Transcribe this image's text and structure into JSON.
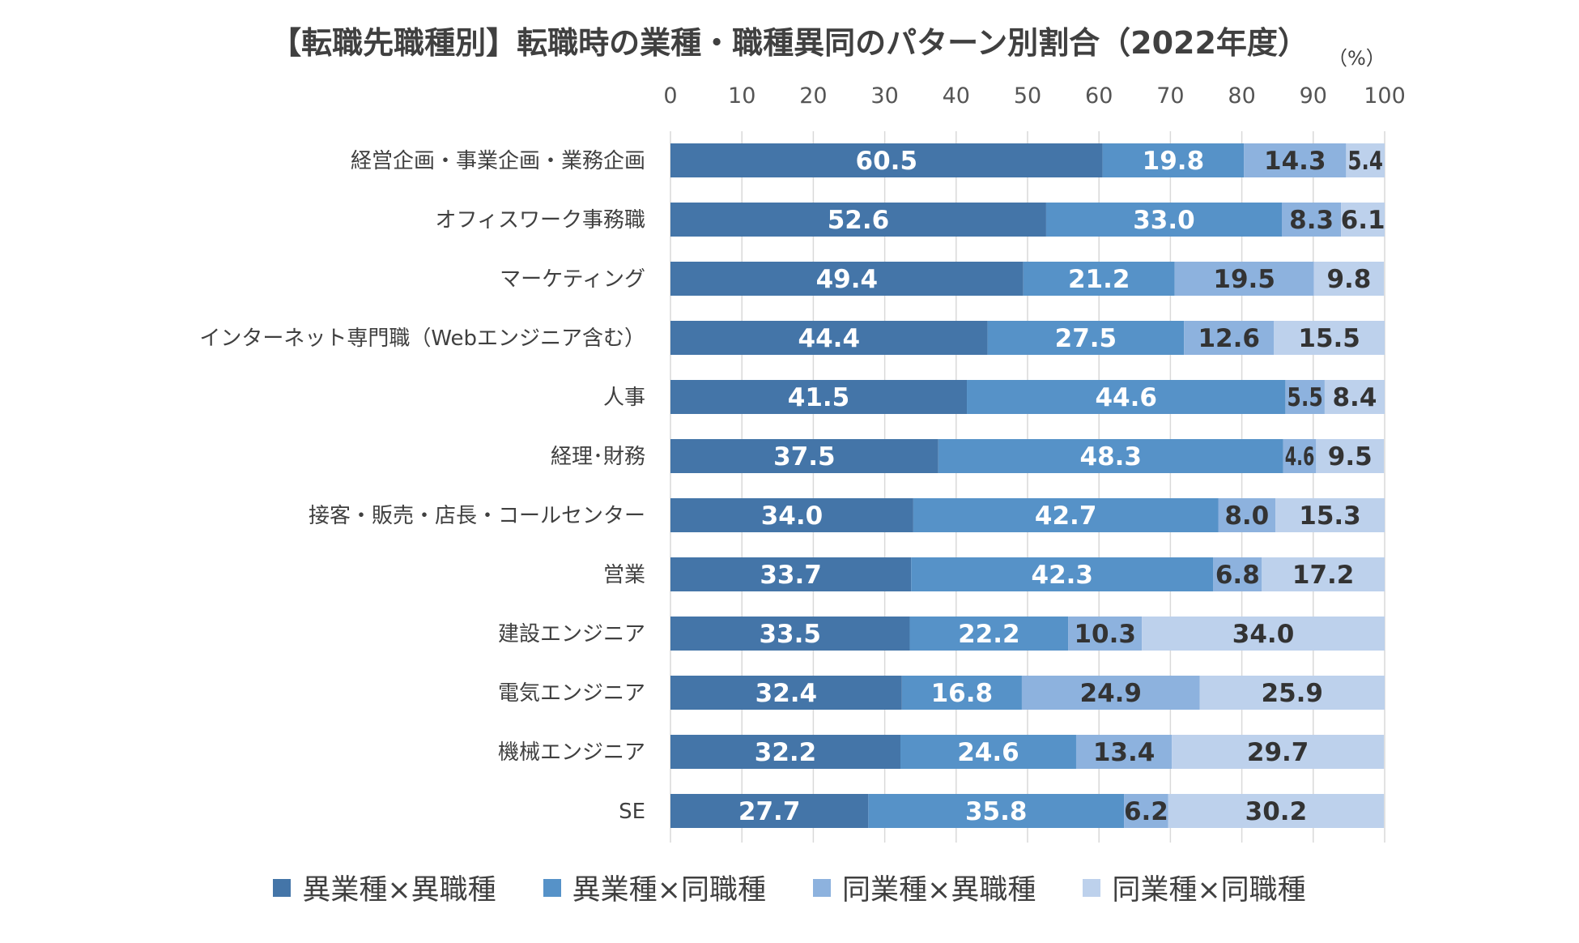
{
  "chart_data": {
    "type": "bar",
    "orientation": "horizontal",
    "stacked": true,
    "title": "【転職先職種別】転職時の業種・職種異同のパターン別割合（2022年度）",
    "unit": "（%）",
    "xlim": [
      0,
      100
    ],
    "xticks": [
      0,
      10,
      20,
      30,
      40,
      50,
      60,
      70,
      80,
      90,
      100
    ],
    "grid": true,
    "legend_position": "bottom",
    "categories": [
      "経営企画・事業企画・業務企画",
      "オフィスワーク事務職",
      "マーケティング",
      "インターネット専門職（Webエンジニア含む）",
      "人事",
      "経理･財務",
      "接客・販売・店長・コールセンター",
      "営業",
      "建設エンジニア",
      "電気エンジニア",
      "機械エンジニア",
      "SE"
    ],
    "series": [
      {
        "name": "異業種×異職種",
        "color": "#4475a8",
        "label_color": "#ffffff",
        "values": [
          60.5,
          52.6,
          49.4,
          44.4,
          41.5,
          37.5,
          34.0,
          33.7,
          33.5,
          32.4,
          32.2,
          27.7
        ]
      },
      {
        "name": "異業種×同職種",
        "color": "#5692c8",
        "label_color": "#ffffff",
        "values": [
          19.8,
          33.0,
          21.2,
          27.5,
          44.6,
          48.3,
          42.7,
          42.3,
          22.2,
          16.8,
          24.6,
          35.8
        ]
      },
      {
        "name": "同業種×異職種",
        "color": "#8db2de",
        "label_color": "#333333",
        "values": [
          14.3,
          8.3,
          19.5,
          12.6,
          5.5,
          4.6,
          8.0,
          6.8,
          10.3,
          24.9,
          13.4,
          6.2
        ]
      },
      {
        "name": "同業種×同職種",
        "color": "#bdd1ec",
        "label_color": "#333333",
        "values": [
          5.4,
          6.1,
          9.8,
          15.5,
          8.4,
          9.5,
          15.3,
          17.2,
          34.0,
          25.9,
          29.7,
          30.2
        ]
      }
    ]
  }
}
